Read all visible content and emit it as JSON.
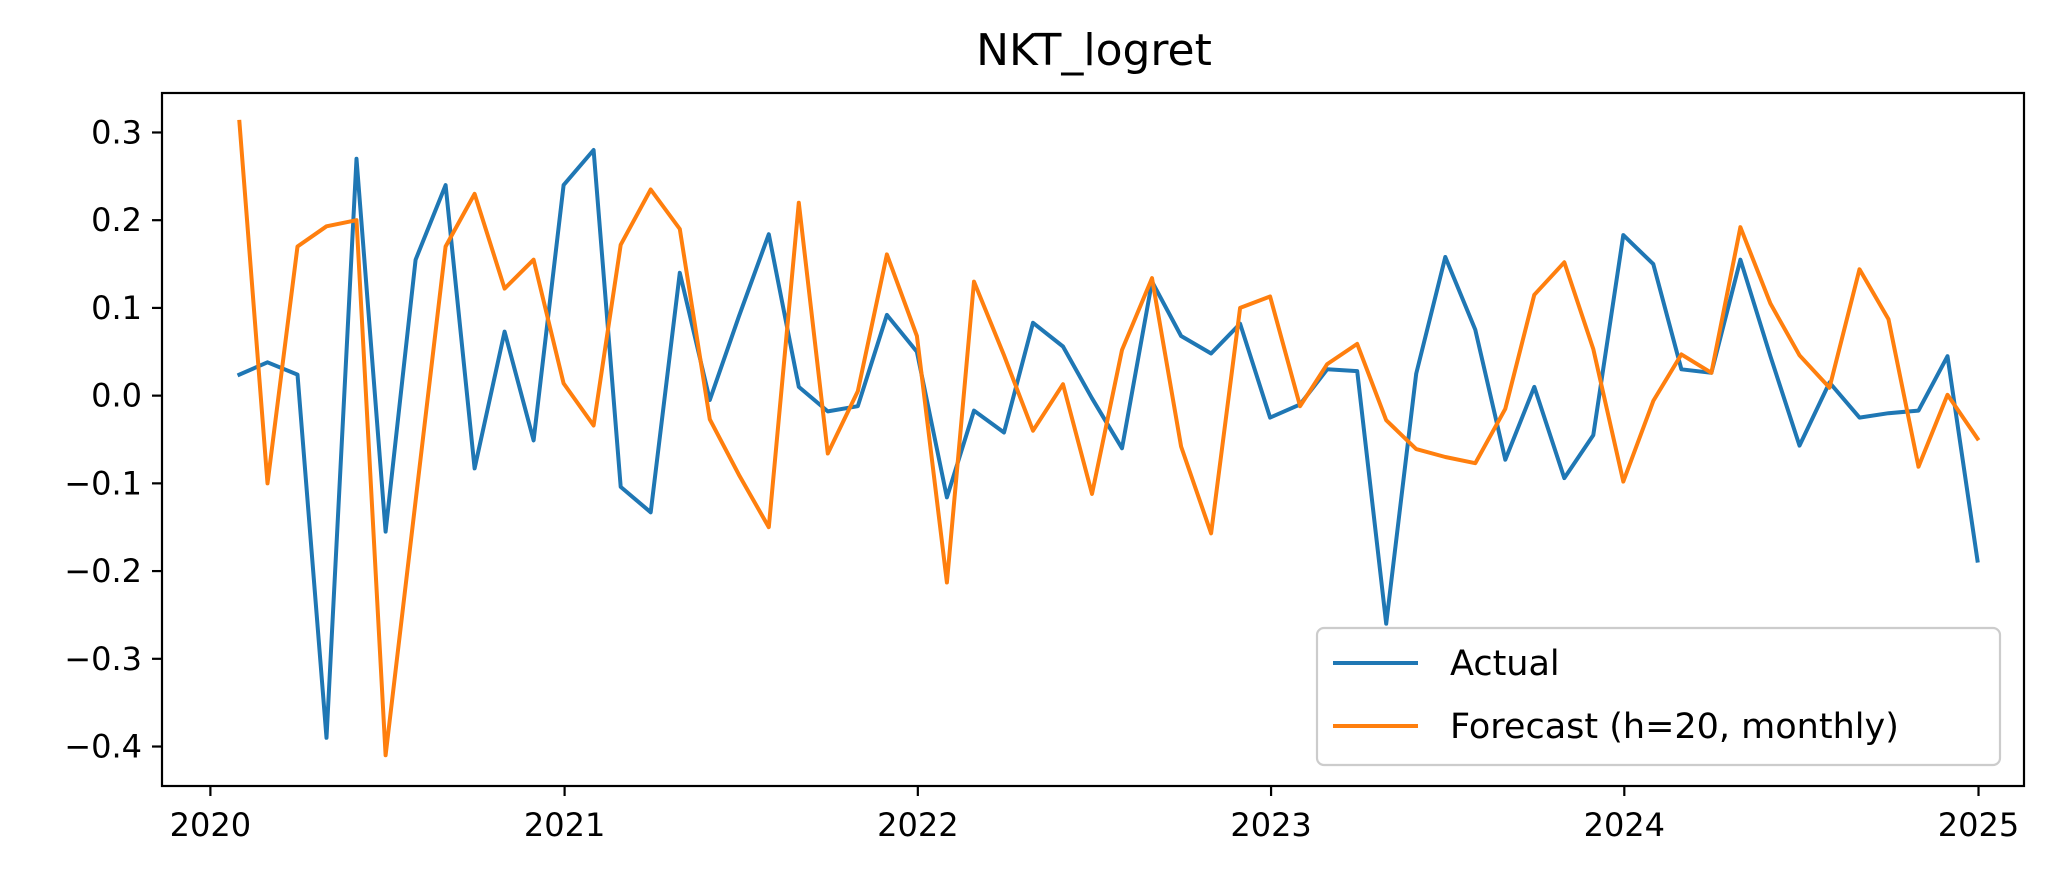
{
  "chart_data": {
    "type": "line",
    "title": "NKT_logret",
    "xlabel": "",
    "ylabel": "",
    "x_axis": {
      "type": "date",
      "range": [
        "2019-11-12",
        "2025-02-17"
      ],
      "ticks": [
        "2020-01-01",
        "2021-01-01",
        "2022-01-01",
        "2023-01-01",
        "2024-01-01",
        "2025-01-01"
      ],
      "tick_labels": [
        "2020",
        "2021",
        "2022",
        "2023",
        "2024",
        "2025"
      ]
    },
    "y_axis": {
      "range": [
        -0.445,
        0.345
      ],
      "ticks": [
        0.3,
        0.2,
        0.1,
        0.0,
        -0.1,
        -0.2,
        -0.3,
        -0.4
      ],
      "tick_labels": [
        "0.3",
        "0.2",
        "0.1",
        "0.0",
        "−0.1",
        "−0.2",
        "−0.3",
        "−0.4"
      ]
    },
    "grid": false,
    "legend_position": "lower-right",
    "dates": [
      "2020-01-31",
      "2020-02-29",
      "2020-03-31",
      "2020-04-30",
      "2020-05-31",
      "2020-06-30",
      "2020-07-31",
      "2020-08-31",
      "2020-09-30",
      "2020-10-31",
      "2020-11-30",
      "2020-12-31",
      "2021-01-31",
      "2021-02-28",
      "2021-03-31",
      "2021-04-30",
      "2021-05-31",
      "2021-06-30",
      "2021-07-31",
      "2021-08-31",
      "2021-09-30",
      "2021-10-31",
      "2021-11-30",
      "2021-12-31",
      "2022-01-31",
      "2022-02-28",
      "2022-03-31",
      "2022-04-30",
      "2022-05-31",
      "2022-06-30",
      "2022-07-31",
      "2022-08-31",
      "2022-09-30",
      "2022-10-31",
      "2022-11-30",
      "2022-12-31",
      "2023-01-31",
      "2023-02-28",
      "2023-03-31",
      "2023-04-30",
      "2023-05-31",
      "2023-06-30",
      "2023-07-31",
      "2023-08-31",
      "2023-09-30",
      "2023-10-31",
      "2023-11-30",
      "2023-12-31",
      "2024-01-31",
      "2024-02-29",
      "2024-03-31",
      "2024-04-30",
      "2024-05-31",
      "2024-06-30",
      "2024-07-31",
      "2024-08-31",
      "2024-09-30",
      "2024-10-31",
      "2024-11-30",
      "2024-12-31"
    ],
    "series": [
      {
        "name": "Actual",
        "color": "#1f77b4",
        "values": [
          0.024,
          0.038,
          0.024,
          -0.39,
          0.27,
          -0.155,
          0.155,
          0.24,
          -0.083,
          0.073,
          -0.051,
          0.24,
          0.28,
          -0.104,
          -0.133,
          0.14,
          -0.005,
          0.09,
          0.184,
          0.01,
          -0.018,
          -0.012,
          0.092,
          0.05,
          -0.116,
          -0.017,
          -0.042,
          0.083,
          0.056,
          -0.003,
          -0.06,
          0.13,
          0.068,
          0.048,
          0.082,
          -0.025,
          -0.01,
          0.03,
          0.028,
          -0.26,
          0.025,
          0.158,
          0.075,
          -0.073,
          0.01,
          -0.094,
          -0.045,
          0.183,
          0.15,
          0.03,
          0.026,
          0.155,
          0.045,
          -0.057,
          0.015,
          -0.025,
          -0.02,
          -0.017,
          0.045,
          -0.188
        ]
      },
      {
        "name": "Forecast (h=20, monthly)",
        "color": "#ff7f0e",
        "values": [
          0.312,
          -0.1,
          0.17,
          0.193,
          0.2,
          -0.41,
          -0.12,
          0.17,
          0.23,
          0.122,
          0.155,
          0.014,
          -0.034,
          0.172,
          0.235,
          0.19,
          -0.027,
          -0.09,
          -0.15,
          0.22,
          -0.066,
          0.005,
          0.161,
          0.068,
          -0.213,
          0.13,
          0.046,
          -0.04,
          0.013,
          -0.112,
          0.052,
          0.134,
          -0.058,
          -0.157,
          0.1,
          0.113,
          -0.012,
          0.036,
          0.059,
          -0.028,
          -0.061,
          -0.07,
          -0.077,
          -0.015,
          0.115,
          0.152,
          0.053,
          -0.098,
          -0.006,
          0.047,
          0.026,
          0.192,
          0.105,
          0.046,
          0.009,
          0.144,
          0.087,
          -0.081,
          0.001,
          -0.049
        ]
      }
    ]
  }
}
